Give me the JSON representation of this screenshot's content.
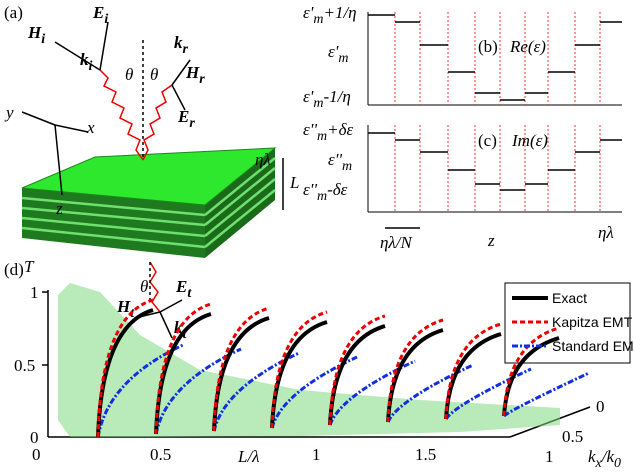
{
  "panel_a": {
    "label": "(a)",
    "labels": [
      {
        "text": "H",
        "sub": "i"
      },
      {
        "text": "E",
        "sub": "i"
      },
      {
        "text": "k",
        "sub": "i"
      },
      {
        "text": "θ"
      },
      {
        "text": "θ"
      },
      {
        "text": "k",
        "sub": "r"
      },
      {
        "text": "H",
        "sub": "r"
      },
      {
        "text": "E",
        "sub": "r"
      },
      {
        "text": "y"
      },
      {
        "text": "x"
      },
      {
        "text": "z"
      },
      {
        "text": "ηλ"
      },
      {
        "text": "L"
      },
      {
        "text": "θ"
      },
      {
        "text": "E",
        "sub": "t"
      },
      {
        "text": "H",
        "sub": "t"
      },
      {
        "text": "k",
        "sub": "t"
      }
    ]
  },
  "panel_b": {
    "label": "(b)",
    "title": "Re(ε)",
    "y_labels": [
      {
        "text": "ε'",
        "sub": "m",
        "rest": "+1/η"
      },
      {
        "text": "ε'",
        "sub": "m"
      },
      {
        "text": "ε'",
        "sub": "m",
        "rest": "-1/η"
      }
    ]
  },
  "panel_c": {
    "label": "(c)",
    "title": "Im(ε)",
    "y_labels": [
      {
        "text": "ε''",
        "sub": "m",
        "rest": "+δε"
      },
      {
        "text": "ε''",
        "sub": "m"
      },
      {
        "text": "ε''",
        "sub": "m",
        "rest": "-δε"
      }
    ],
    "x_labels": [
      "ηλ/N",
      "z",
      "ηλ"
    ]
  },
  "panel_d": {
    "label": "(d)",
    "y_label": "T",
    "yticks": [
      1,
      0.5,
      0
    ],
    "xticks": [
      0,
      0.5,
      1,
      1.5
    ],
    "x_label": {
      "text": "L/λ"
    },
    "depth_ticks": [
      0,
      0.5,
      1
    ],
    "depth_label": {
      "text": "k",
      "sub": "x",
      "rest": "/k",
      "sub2": "0"
    },
    "legend": [
      "Exact",
      "Kapitza EMT",
      "Standard EMT"
    ]
  }
}
